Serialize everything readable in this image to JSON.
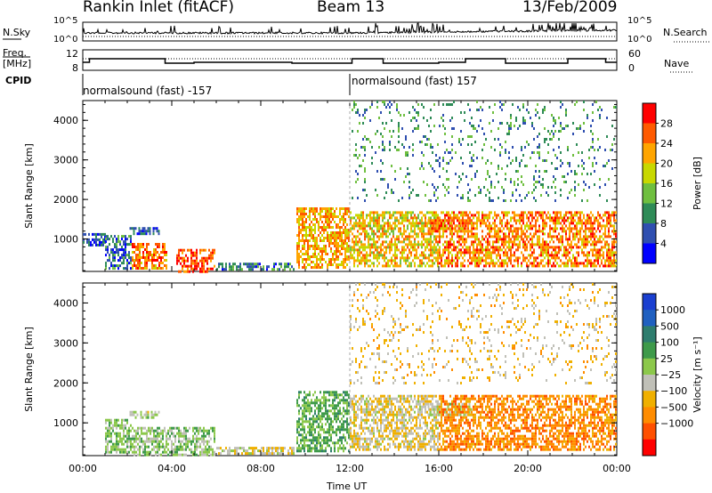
{
  "header": {
    "station": "Rankin Inlet (fitACF)",
    "beam": "Beam 13",
    "date": "13/Feb/2009"
  },
  "top_panels": {
    "nsky_label": "N.Sky",
    "nsky_ticks": [
      "10^5",
      "10^0"
    ],
    "nsearch_label": "N.Search",
    "nsearch_ticks": [
      "10^5",
      "10^0"
    ],
    "freq_label_line1": "Freq.",
    "freq_label_line2": "[MHz]",
    "freq_ticks": [
      "12",
      "8"
    ],
    "nave_label": "Nave",
    "nave_ticks": [
      "60",
      "0"
    ],
    "cpid_label": "CPID",
    "cpid_segments": [
      {
        "text": "normalsound (fast) -157"
      },
      {
        "text": "normalsound (fast) 157"
      }
    ]
  },
  "x_axis": {
    "label": "Time UT",
    "ticks": [
      "00:00",
      "04:00",
      "08:00",
      "12:00",
      "16:00",
      "20:00",
      "00:00"
    ]
  },
  "colors": {
    "power_scale": [
      "#0000ff",
      "#2f4fb0",
      "#2e8b57",
      "#6fbf3f",
      "#c8d800",
      "#ffa500",
      "#ff5a00",
      "#ff0000"
    ],
    "velocity_scale": [
      "#1a3fd0",
      "#2060c0",
      "#2e7d6e",
      "#3e9a4a",
      "#8cc84b",
      "#c0c0b8",
      "#f0b000",
      "#ff8c00",
      "#ff5000",
      "#ff0000"
    ],
    "ground_scatter": "#b8b8b8"
  },
  "chart_data": [
    {
      "type": "heatmap",
      "title": "",
      "xlabel": "",
      "ylabel": "Slant Range [km]",
      "xlim": [
        0,
        24
      ],
      "ylim": [
        180,
        4500
      ],
      "yticks": [
        "1000",
        "2000",
        "3000",
        "4000"
      ],
      "colorbar": {
        "label": "Power [dB]",
        "ticks": [
          "28",
          "24",
          "20",
          "16",
          "12",
          "8",
          "4"
        ],
        "range": [
          0,
          32
        ]
      },
      "echo_regions": [
        {
          "t0": 0.0,
          "t1": 1.0,
          "r0": 850,
          "r1": 1150,
          "value": 6
        },
        {
          "t0": 1.0,
          "t1": 2.2,
          "r0": 250,
          "r1": 1100,
          "value": 8
        },
        {
          "t0": 2.1,
          "t1": 3.4,
          "r0": 1100,
          "r1": 1300,
          "value": 6
        },
        {
          "t0": 2.2,
          "t1": 3.8,
          "r0": 250,
          "r1": 900,
          "value": 24
        },
        {
          "t0": 4.2,
          "t1": 5.9,
          "r0": 200,
          "r1": 750,
          "value": 26
        },
        {
          "t0": 6.0,
          "t1": 9.5,
          "r0": 200,
          "r1": 400,
          "value": 8
        },
        {
          "t0": 9.6,
          "t1": 12.0,
          "r0": 300,
          "r1": 1800,
          "value": 22
        },
        {
          "t0": 12.0,
          "t1": 16.0,
          "r0": 300,
          "r1": 1700,
          "value": 20
        },
        {
          "t0": 15.5,
          "t1": 17.5,
          "r0": 1200,
          "r1": 1500,
          "value": 26
        },
        {
          "t0": 16.0,
          "t1": 24.0,
          "r0": 300,
          "r1": 1700,
          "value": 24
        },
        {
          "t0": 12.0,
          "t1": 24.0,
          "r0": 2000,
          "r1": 4500,
          "value": 10
        }
      ]
    },
    {
      "type": "heatmap",
      "title": "",
      "xlabel": "Time UT",
      "ylabel": "Slant Range [km]",
      "xlim": [
        0,
        24
      ],
      "ylim": [
        180,
        4500
      ],
      "yticks": [
        "1000",
        "2000",
        "3000",
        "4000"
      ],
      "colorbar": {
        "label": "Velocity [m s⁻¹]",
        "ticks": [
          "1000",
          "500",
          "100",
          "25",
          "−25",
          "−100",
          "−500",
          "−1000"
        ],
        "range": [
          -1200,
          1200
        ]
      },
      "echo_regions": [
        {
          "t0": 1.0,
          "t1": 2.2,
          "r0": 250,
          "r1": 1100,
          "value": 150
        },
        {
          "t0": 2.1,
          "t1": 3.4,
          "r0": 1100,
          "r1": 1300,
          "value": 0
        },
        {
          "t0": 2.2,
          "t1": 5.9,
          "r0": 200,
          "r1": 900,
          "value": 100
        },
        {
          "t0": 6.0,
          "t1": 9.5,
          "r0": 200,
          "r1": 400,
          "value": -150
        },
        {
          "t0": 9.6,
          "t1": 12.0,
          "r0": 300,
          "r1": 1800,
          "value": 300
        },
        {
          "t0": 12.0,
          "t1": 16.0,
          "r0": 300,
          "r1": 1700,
          "value": -200
        },
        {
          "t0": 15.5,
          "t1": 17.5,
          "r0": 1200,
          "r1": 1500,
          "value": 0
        },
        {
          "t0": 16.0,
          "t1": 24.0,
          "r0": 300,
          "r1": 1700,
          "value": -600
        },
        {
          "t0": 12.0,
          "t1": 24.0,
          "r0": 2000,
          "r1": 4500,
          "value": -300
        }
      ]
    }
  ]
}
